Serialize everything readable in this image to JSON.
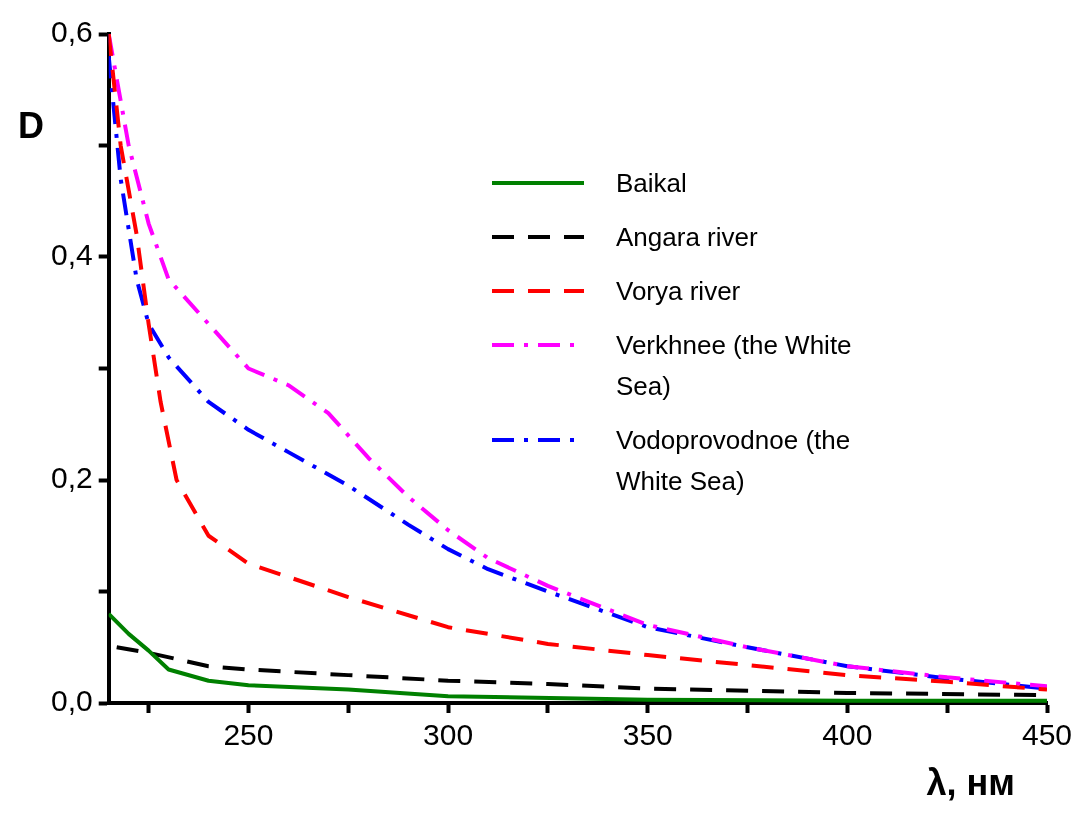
{
  "chart_data": {
    "type": "line",
    "xlabel": "λ, нм",
    "ylabel": "D",
    "xlim": [
      215,
      450
    ],
    "ylim": [
      0,
      0.6
    ],
    "xticks": [
      {
        "value": 225,
        "label": null
      },
      250,
      {
        "value": 275,
        "label": null
      },
      300,
      {
        "value": 325,
        "label": null
      },
      350,
      {
        "value": 375,
        "label": null
      },
      400,
      {
        "value": 425,
        "label": null
      },
      450
    ],
    "yticks": [
      {
        "value": 0,
        "label": "0,0"
      },
      {
        "value": 0.1,
        "label": null
      },
      {
        "value": 0.2,
        "label": "0,2"
      },
      {
        "value": 0.3,
        "label": null
      },
      {
        "value": 0.4,
        "label": "0,4"
      },
      {
        "value": 0.5,
        "label": null
      },
      {
        "value": 0.6,
        "label": "0,6"
      }
    ],
    "grid": false,
    "legend": "top right",
    "marker": "none",
    "series": [
      {
        "name": "Baikal",
        "color": "#008000",
        "line_style": "solid",
        "x": [
          215,
          220,
          225,
          230,
          240,
          250,
          275,
          300,
          350,
          400,
          450
        ],
        "values": [
          0.08,
          0.062,
          0.047,
          0.03,
          0.02,
          0.016,
          0.012,
          0.006,
          0.003,
          0.002,
          0.002
        ]
      },
      {
        "name": "Angara river",
        "color": "#000000",
        "line_style": "dashed",
        "x": [
          217,
          225,
          240,
          250,
          275,
          300,
          325,
          350,
          400,
          450
        ],
        "values": [
          0.05,
          0.045,
          0.033,
          0.03,
          0.025,
          0.02,
          0.017,
          0.013,
          0.009,
          0.007
        ]
      },
      {
        "name": "Vorya river",
        "color": "#ff0000",
        "line_style": "dashed",
        "x": [
          215,
          218,
          222,
          225,
          228,
          232,
          240,
          250,
          275,
          300,
          325,
          350,
          375,
          400,
          425,
          450
        ],
        "values": [
          0.6,
          0.5,
          0.42,
          0.34,
          0.27,
          0.2,
          0.15,
          0.125,
          0.095,
          0.068,
          0.053,
          0.043,
          0.034,
          0.025,
          0.019,
          0.012
        ]
      },
      {
        "name": "Verkhnee (the White Sea)",
        "color": "#ff00ff",
        "line_style": "dashdot",
        "x": [
          215,
          220,
          225,
          230,
          240,
          250,
          260,
          270,
          280,
          290,
          300,
          310,
          325,
          350,
          375,
          400,
          425,
          450
        ],
        "values": [
          0.6,
          0.5,
          0.43,
          0.38,
          0.34,
          0.3,
          0.285,
          0.26,
          0.22,
          0.185,
          0.155,
          0.13,
          0.105,
          0.07,
          0.05,
          0.033,
          0.023,
          0.015
        ]
      },
      {
        "name": "Vodoprovodnoe (the White Sea)",
        "color": "#0000ff",
        "line_style": "dashdot",
        "x": [
          215,
          218,
          222,
          225,
          230,
          240,
          250,
          260,
          275,
          290,
          300,
          310,
          325,
          350,
          375,
          400,
          425,
          450
        ],
        "values": [
          0.58,
          0.47,
          0.38,
          0.34,
          0.31,
          0.27,
          0.245,
          0.225,
          0.195,
          0.16,
          0.138,
          0.12,
          0.1,
          0.068,
          0.05,
          0.033,
          0.022,
          0.013
        ]
      }
    ]
  }
}
